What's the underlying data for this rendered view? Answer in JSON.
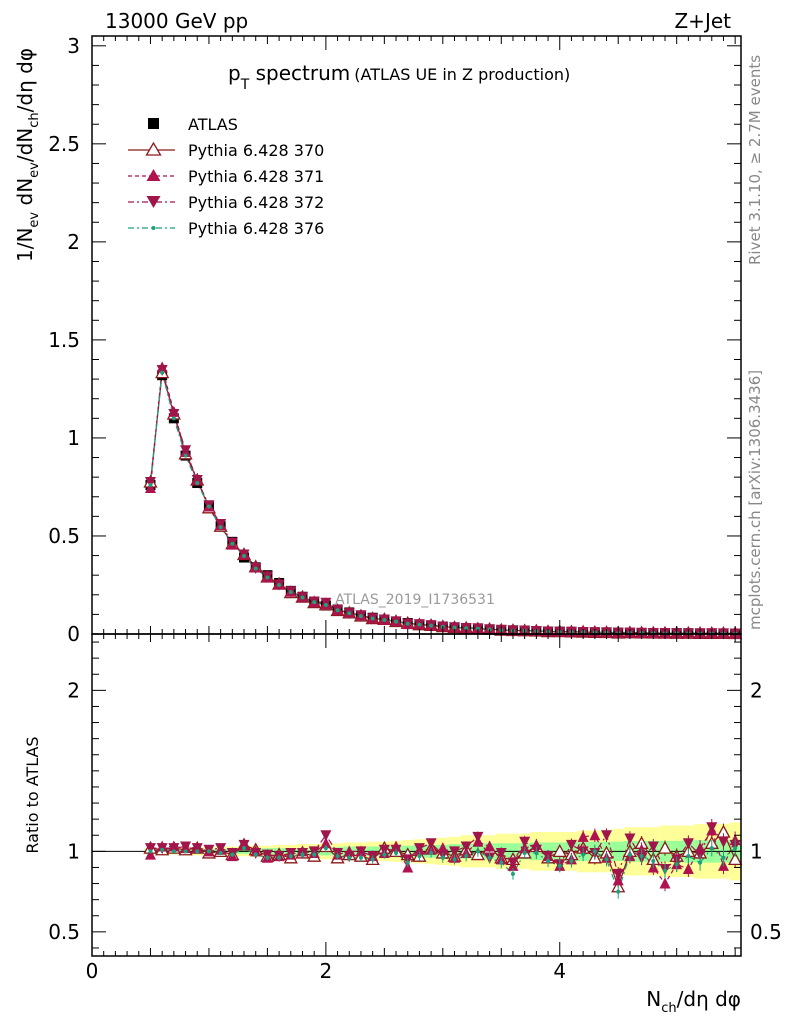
{
  "header": {
    "left": "13000 GeV pp",
    "right": "Z+Jet"
  },
  "title": {
    "main": "p",
    "sub": "T",
    "rest": " spectrum",
    "note": "(ATLAS UE in Z production)"
  },
  "side_labels": {
    "rivet": "Rivet 3.1.10, ≥ 2.7M events",
    "mcplots": "mcplots.cern.ch [arXiv:1306.3436]"
  },
  "watermark": "ATLAS_2019_I1736531",
  "axes": {
    "ylabel_main": {
      "a": "1/N",
      "a_sub": "ev",
      "b": " dN",
      "b_sub": "ev",
      "c": "/dN",
      "c_sub": "ch",
      "d": "/dη dφ"
    },
    "ylabel_ratio": "Ratio to ATLAS",
    "xlabel": {
      "a": "N",
      "a_sub": "ch",
      "b": "/dη dφ"
    },
    "x_ticks": [
      "0",
      "2",
      "4"
    ],
    "y_ticks_main": [
      "0",
      "0.5",
      "1",
      "1.5",
      "2",
      "2.5",
      "3"
    ],
    "y_ticks_ratio": [
      "0.5",
      "1",
      "2"
    ]
  },
  "legend": [
    "ATLAS",
    "Pythia 6.428 370",
    "Pythia 6.428 371",
    "Pythia 6.428 372",
    "Pythia 6.428 376"
  ],
  "chart_data": {
    "type": "scatter",
    "x": [
      0.5,
      0.6,
      0.7,
      0.8,
      0.9,
      1.0,
      1.1,
      1.2,
      1.3,
      1.4,
      1.5,
      1.6,
      1.7,
      1.8,
      1.9,
      2.0,
      2.1,
      2.2,
      2.3,
      2.4,
      2.5,
      2.6,
      2.7,
      2.8,
      2.9,
      3.0,
      3.1,
      3.2,
      3.3,
      3.4,
      3.5,
      3.6,
      3.7,
      3.8,
      3.9,
      4.0,
      4.1,
      4.2,
      4.3,
      4.4,
      4.5,
      4.6,
      4.7,
      4.8,
      4.9,
      5.0,
      5.1,
      5.2,
      5.3,
      5.4,
      5.5
    ],
    "xlim": [
      0,
      5.55
    ],
    "ylim_main": [
      0,
      3.05
    ],
    "ylim_ratio": [
      0.35,
      2.35
    ],
    "series": [
      {
        "name": "ATLAS",
        "color": "#000000",
        "values": [
          0.76,
          1.32,
          1.1,
          0.91,
          0.77,
          0.65,
          0.55,
          0.47,
          0.39,
          0.34,
          0.3,
          0.26,
          0.22,
          0.19,
          0.165,
          0.145,
          0.125,
          0.11,
          0.095,
          0.083,
          0.073,
          0.064,
          0.056,
          0.049,
          0.043,
          0.038,
          0.034,
          0.03,
          0.027,
          0.024,
          0.021,
          0.019,
          0.017,
          0.015,
          0.013,
          0.012,
          0.011,
          0.0098,
          0.0088,
          0.0079,
          0.0071,
          0.0064,
          0.0058,
          0.0052,
          0.0047,
          0.0043,
          0.0039,
          0.0035,
          0.0032,
          0.0029,
          0.0026
        ],
        "ratio_band_inner": [
          0.015,
          0.015,
          0.015,
          0.015,
          0.015,
          0.015,
          0.015,
          0.015,
          0.015,
          0.015,
          0.02,
          0.02,
          0.02,
          0.02,
          0.025,
          0.025,
          0.025,
          0.03,
          0.03,
          0.03,
          0.035,
          0.035,
          0.035,
          0.04,
          0.04,
          0.04,
          0.045,
          0.045,
          0.045,
          0.05,
          0.05,
          0.05,
          0.05,
          0.055,
          0.055,
          0.055,
          0.06,
          0.06,
          0.06,
          0.06,
          0.06,
          0.065,
          0.065,
          0.065,
          0.065,
          0.065,
          0.07,
          0.07,
          0.07,
          0.07,
          0.07
        ],
        "ratio_band_outer": [
          0.02,
          0.02,
          0.02,
          0.025,
          0.025,
          0.025,
          0.03,
          0.03,
          0.03,
          0.035,
          0.035,
          0.04,
          0.04,
          0.045,
          0.045,
          0.05,
          0.05,
          0.055,
          0.055,
          0.06,
          0.06,
          0.065,
          0.07,
          0.075,
          0.08,
          0.085,
          0.09,
          0.1,
          0.1,
          0.1,
          0.11,
          0.11,
          0.11,
          0.12,
          0.12,
          0.12,
          0.12,
          0.13,
          0.13,
          0.13,
          0.14,
          0.15,
          0.15,
          0.15,
          0.16,
          0.16,
          0.16,
          0.17,
          0.17,
          0.17,
          0.18
        ]
      },
      {
        "name": "Pythia 6.428 370",
        "color": "#8b1a1a",
        "marker": "triangle-open",
        "ratio": [
          1.02,
          1.01,
          1.02,
          1.01,
          1.02,
          0.99,
          1.0,
          0.98,
          1.04,
          1.01,
          0.97,
          0.98,
          0.96,
          0.99,
          0.97,
          1.03,
          0.96,
          0.98,
          0.97,
          0.95,
          1.02,
          1.0,
          0.98,
          0.97,
          1.02,
          0.99,
          0.97,
          1.01,
          0.98,
          1.02,
          0.96,
          0.95,
          0.99,
          1.03,
          0.96,
          1.0,
          0.98,
          1.02,
          0.96,
          0.99,
          0.78,
          1.0,
          1.05,
          0.95,
          1.02,
          0.97,
          1.0,
          0.99,
          1.05,
          1.12,
          0.95
        ]
      },
      {
        "name": "Pythia 6.428 371",
        "color": "#b0124f",
        "marker": "triangle-up",
        "ratio": [
          0.98,
          1.03,
          1.03,
          1.02,
          1.02,
          1.0,
          1.01,
          0.97,
          1.04,
          1.0,
          0.96,
          0.97,
          0.98,
          1.0,
          0.99,
          1.05,
          0.98,
          1.0,
          1.0,
          0.97,
          0.99,
          1.03,
          0.9,
          1.01,
          1.01,
          1.02,
          0.96,
          0.99,
          1.06,
          1.03,
          0.95,
          0.91,
          1.02,
          1.04,
          0.97,
          0.91,
          0.95,
          1.09,
          1.1,
          0.96,
          0.82,
          0.97,
          1.01,
          0.9,
          0.8,
          0.92,
          0.89,
          1.02,
          1.13,
          0.91,
          1.07
        ]
      },
      {
        "name": "Pythia 6.428 372",
        "color": "#a0164a",
        "marker": "triangle-down",
        "ratio": [
          1.02,
          1.02,
          1.02,
          1.03,
          1.02,
          1.01,
          1.02,
          0.99,
          1.04,
          0.99,
          0.98,
          0.97,
          0.99,
          0.99,
          1.0,
          1.1,
          0.99,
          0.97,
          1.0,
          0.97,
          1.01,
          1.01,
          0.95,
          1.02,
          1.05,
          0.98,
          1.0,
          1.03,
          1.09,
          0.96,
          0.99,
          0.93,
          1.06,
          1.01,
          0.97,
          0.92,
          1.04,
          1.0,
          0.99,
          1.1,
          0.86,
          1.08,
          0.96,
          1.03,
          0.89,
          0.95,
          1.05,
          0.98,
          1.15,
          1.06,
          1.04
        ]
      },
      {
        "name": "Pythia 6.428 376",
        "color": "#1f9f7a",
        "marker": "dot",
        "ratio": [
          1.0,
          1.01,
          1.0,
          1.0,
          1.0,
          1.0,
          0.99,
          0.98,
          1.02,
          0.98,
          0.96,
          0.96,
          0.97,
          0.98,
          0.98,
          1.02,
          0.97,
          0.96,
          0.96,
          0.95,
          0.98,
          0.99,
          0.93,
          0.97,
          0.99,
          0.96,
          0.95,
          0.97,
          1.0,
          0.96,
          0.93,
          0.86,
          0.99,
          0.99,
          0.94,
          0.91,
          0.94,
          0.98,
          1.0,
          0.95,
          0.75,
          0.98,
          0.97,
          0.94,
          0.88,
          0.92,
          0.97,
          0.93,
          1.02,
          0.96,
          1.02
        ]
      }
    ]
  }
}
